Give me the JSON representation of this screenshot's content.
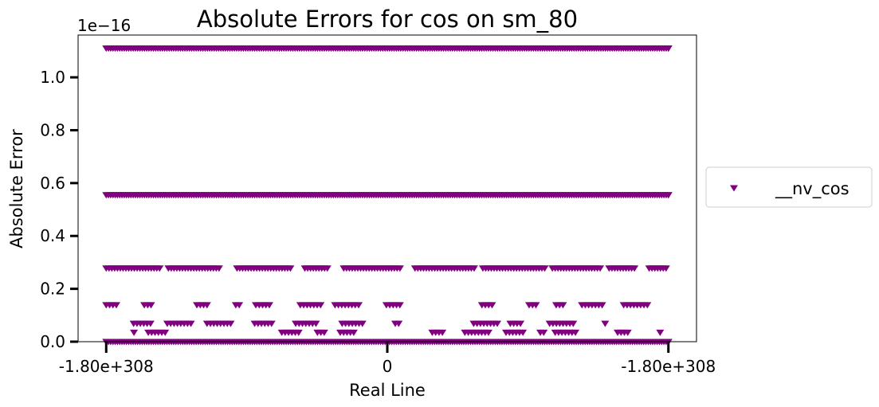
{
  "chart_data": {
    "type": "scatter",
    "title": "Absolute Errors for cos on sm_80",
    "xlabel": "Real Line",
    "ylabel": "Absolute Error",
    "y_offset_label": "1e−16",
    "x_ticks": [
      "-1.80e+308",
      "0",
      "-1.80e+308"
    ],
    "y_ticks": [
      "0.0",
      "0.2",
      "0.4",
      "0.6",
      "0.8",
      "1.0"
    ],
    "x_tick_values": [
      -1,
      0,
      1
    ],
    "y_tick_values": [
      0.0,
      0.2,
      0.4,
      0.6,
      0.8,
      1.0
    ],
    "xlim": [
      -1.1,
      1.1
    ],
    "ylim": [
      0.0,
      1.16
    ],
    "y_scale_exponent": -16,
    "marker": "triangle-down",
    "legend_placement": "right, outside plot",
    "grid": false,
    "series": [
      {
        "name": "__nv_cos",
        "color": "#800080",
        "levels": [
          {
            "y": 1.11,
            "density": "continuous",
            "x_range": [
              -1,
              1
            ]
          },
          {
            "y": 0.555,
            "density": "continuous",
            "x_range": [
              -1,
              1
            ]
          },
          {
            "y": 0.278,
            "density": "dense-with-gaps",
            "x_range": [
              -1,
              1
            ]
          },
          {
            "y": 0.139,
            "density": "sparse",
            "x_range": [
              -1,
              1
            ]
          },
          {
            "y": 0.069,
            "density": "sparse",
            "x_range": [
              -1,
              1
            ]
          },
          {
            "y": 0.035,
            "density": "sparse",
            "x_range": [
              -1,
              1
            ]
          },
          {
            "y": 0.0,
            "density": "continuous",
            "x_range": [
              -1,
              1
            ]
          }
        ]
      }
    ]
  }
}
